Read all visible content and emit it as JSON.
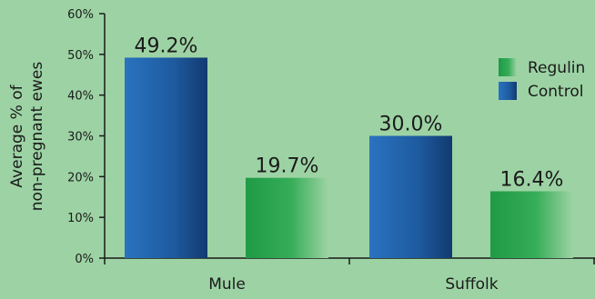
{
  "chart_data": {
    "type": "bar",
    "categories": [
      "Mule",
      "Suffolk"
    ],
    "series": [
      {
        "name": "Control",
        "values": [
          49.2,
          30.0
        ],
        "labels": [
          "49.2%",
          "30.0%"
        ],
        "color": "#1f5fa8"
      },
      {
        "name": "Regulin",
        "values": [
          19.7,
          16.4
        ],
        "labels": [
          "19.7%",
          "16.4%"
        ],
        "color": "#22a24a"
      }
    ],
    "ylabel_lines": [
      "Average % of",
      "non-pregnant ewes"
    ],
    "ylim": [
      0,
      60
    ],
    "yticks": [
      0,
      10,
      20,
      30,
      40,
      50,
      60
    ],
    "ytick_labels": [
      "0%",
      "10%",
      "20%",
      "30%",
      "40%",
      "50%",
      "60%"
    ],
    "legend": [
      "Regulin",
      "Control"
    ],
    "legend_position": "right",
    "background": "#9dd3a4",
    "grid": false
  }
}
